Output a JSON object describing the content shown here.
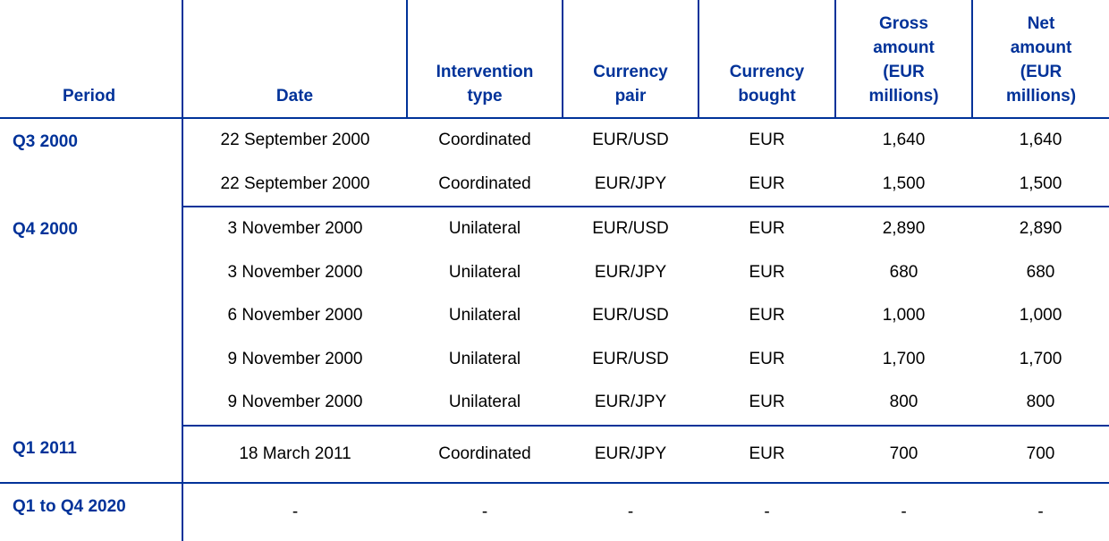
{
  "headers": {
    "period": "Period",
    "date": "Date",
    "type": "Intervention type",
    "pair": "Currency pair",
    "bought": "Currency bought",
    "gross": "Gross amount (EUR millions)",
    "net": "Net amount (EUR millions)"
  },
  "groups": [
    {
      "period": "Q3 2000",
      "rows": [
        [
          "22 September 2000",
          "Coordinated",
          "EUR/USD",
          "EUR",
          "1,640",
          "1,640"
        ],
        [
          "22 September 2000",
          "Coordinated",
          "EUR/JPY",
          "EUR",
          "1,500",
          "1,500"
        ]
      ]
    },
    {
      "period": "Q4 2000",
      "rows": [
        [
          "3 November 2000",
          "Unilateral",
          "EUR/USD",
          "EUR",
          "2,890",
          "2,890"
        ],
        [
          "3 November 2000",
          "Unilateral",
          "EUR/JPY",
          "EUR",
          "680",
          "680"
        ],
        [
          "6 November 2000",
          "Unilateral",
          "EUR/USD",
          "EUR",
          "1,000",
          "1,000"
        ],
        [
          "9 November 2000",
          "Unilateral",
          "EUR/USD",
          "EUR",
          "1,700",
          "1,700"
        ],
        [
          "9 November 2000",
          "Unilateral",
          "EUR/JPY",
          "EUR",
          "800",
          "800"
        ]
      ]
    },
    {
      "period": "Q1 2011",
      "rows": [
        [
          "18 March 2011",
          "Coordinated",
          "EUR/JPY",
          "EUR",
          "700",
          "700"
        ]
      ]
    },
    {
      "period": "Q1 to Q4 2020",
      "rows": [
        [
          "-",
          "-",
          "-",
          "-",
          "-",
          "-"
        ]
      ]
    }
  ],
  "colors": {
    "accent": "#003299"
  }
}
